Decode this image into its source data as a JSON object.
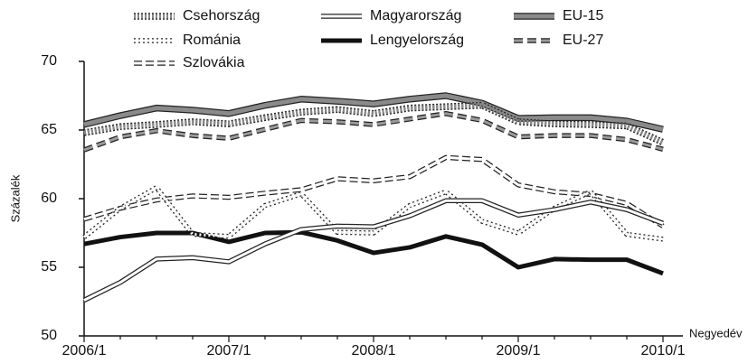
{
  "chart_data": {
    "type": "line",
    "y_label": "Százalék",
    "x_label": "Negyedév",
    "categories": [
      "2006/1",
      null,
      null,
      null,
      "2007/1",
      null,
      null,
      null,
      "2008/1",
      null,
      null,
      null,
      "2009/1",
      null,
      null,
      null,
      "2010/1"
    ],
    "ylim": [
      50,
      70
    ],
    "yticks": [
      50,
      55,
      60,
      65,
      70
    ],
    "series": [
      {
        "name": "Csehország",
        "color": "#8a8a8a",
        "width": 5,
        "dash": "2 2",
        "outline": true,
        "values": [
          64.8,
          65.25,
          65.4,
          65.6,
          65.45,
          65.9,
          66.3,
          66.5,
          66.2,
          66.6,
          66.7,
          66.8,
          65.6,
          65.45,
          65.4,
          65.3,
          64.1
        ]
      },
      {
        "name": "Magyarország",
        "color": "#ffffff",
        "width": 3,
        "dash": "",
        "outline": true,
        "values": [
          52.6,
          53.9,
          55.6,
          55.7,
          55.4,
          56.7,
          57.75,
          58.0,
          57.95,
          58.75,
          59.85,
          59.85,
          58.8,
          59.2,
          59.75,
          59.2,
          58.2
        ]
      },
      {
        "name": "EU-15",
        "color": "#8a8a8a",
        "width": 5,
        "dash": "",
        "outline": true,
        "values": [
          65.4,
          66.05,
          66.6,
          66.45,
          66.2,
          66.8,
          67.25,
          67.1,
          66.9,
          67.25,
          67.5,
          66.95,
          65.85,
          65.9,
          65.9,
          65.65,
          65.05
        ]
      },
      {
        "name": "Románia",
        "color": "#ffffff",
        "width": 3,
        "dash": "2 3",
        "outline": true,
        "values": [
          57.2,
          59.3,
          60.8,
          57.4,
          57.25,
          59.5,
          60.35,
          57.55,
          57.5,
          59.5,
          60.5,
          58.35,
          57.5,
          59.3,
          60.5,
          57.4,
          57.05
        ]
      },
      {
        "name": "Lengyelország",
        "color": "#111111",
        "width": 5,
        "dash": "",
        "outline": false,
        "values": [
          56.7,
          57.2,
          57.5,
          57.5,
          56.85,
          57.5,
          57.55,
          56.95,
          56.05,
          56.45,
          57.25,
          56.65,
          55.0,
          55.6,
          55.55,
          55.55,
          54.55
        ]
      },
      {
        "name": "EU-27",
        "color": "#9a9a9a",
        "width": 3,
        "dash": "10 5",
        "outline": true,
        "values": [
          63.55,
          64.5,
          64.95,
          64.6,
          64.4,
          65.05,
          65.7,
          65.6,
          65.4,
          65.8,
          66.2,
          65.7,
          64.5,
          64.6,
          64.6,
          64.3,
          63.6
        ]
      },
      {
        "name": "Szlovákia",
        "color": "#ffffff",
        "width": 3,
        "dash": "9 4",
        "outline": true,
        "values": [
          58.5,
          59.3,
          59.9,
          60.2,
          60.1,
          60.4,
          60.65,
          61.45,
          61.3,
          61.6,
          63.0,
          62.85,
          61.0,
          60.5,
          60.3,
          59.65,
          58.0
        ]
      }
    ]
  }
}
